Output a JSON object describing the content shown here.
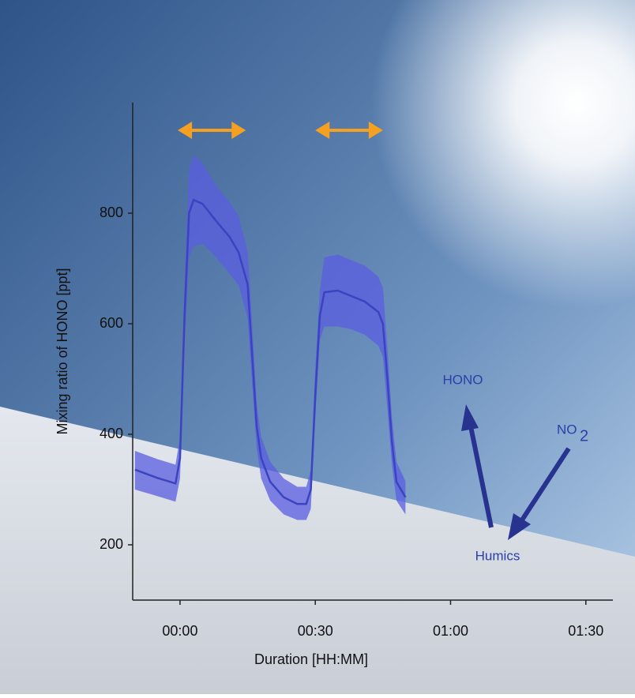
{
  "chart_data": {
    "type": "line",
    "x_label": "Duration [HH:MM]",
    "y_label": "Mixing ratio of HONO [ppt]",
    "xlim": [
      -10.5,
      96
    ],
    "ylim": [
      100,
      1000
    ],
    "xticks": [
      {
        "value": 0,
        "label": "00:00"
      },
      {
        "value": 30,
        "label": "00:30"
      },
      {
        "value": 60,
        "label": "01:00"
      },
      {
        "value": 90,
        "label": "01:30"
      }
    ],
    "yticks": [
      200,
      400,
      600,
      800
    ],
    "x": [
      -10,
      -5,
      -1,
      0,
      1,
      2,
      3,
      5,
      8,
      11,
      13,
      15,
      16,
      17,
      18,
      20,
      23,
      26,
      28,
      29,
      30,
      31,
      32,
      35,
      38,
      41,
      44,
      45,
      46,
      47,
      48,
      50
    ],
    "series": [
      {
        "color": "#3a44c0",
        "values": [
          336,
          321,
          311,
          357,
          614,
          800,
          824,
          817,
          786,
          757,
          729,
          671,
          543,
          414,
          357,
          314,
          286,
          274,
          274,
          300,
          471,
          614,
          657,
          660,
          650,
          640,
          621,
          600,
          500,
          386,
          314,
          286
        ]
      }
    ],
    "band": {
      "color": "#5a5ee0",
      "lower": [
        300,
        288,
        278,
        320,
        560,
        720,
        740,
        745,
        720,
        690,
        670,
        610,
        490,
        375,
        320,
        280,
        255,
        245,
        245,
        265,
        430,
        570,
        595,
        595,
        590,
        580,
        560,
        540,
        445,
        345,
        280,
        255
      ],
      "upper": [
        370,
        355,
        345,
        395,
        670,
        880,
        905,
        890,
        850,
        820,
        795,
        730,
        600,
        455,
        395,
        350,
        320,
        305,
        305,
        335,
        520,
        660,
        720,
        725,
        715,
        705,
        685,
        665,
        555,
        430,
        350,
        315
      ]
    },
    "light_periods": {
      "color": "#f5a020",
      "ranges": [
        [
          -0.5,
          14.6
        ],
        [
          30,
          45
        ]
      ]
    },
    "annotations": {
      "hono": "HONO",
      "no2": {
        "text": "NO",
        "sub": "2"
      },
      "humics": "Humics"
    }
  }
}
